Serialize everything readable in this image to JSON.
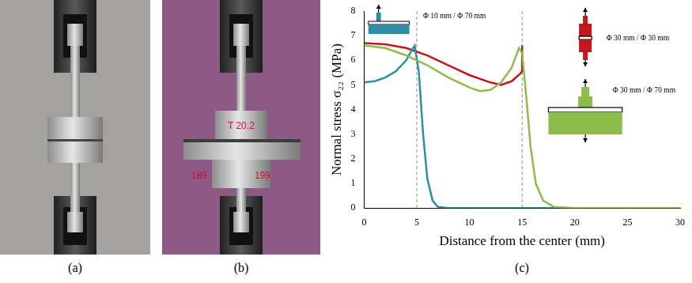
{
  "panels": {
    "a": {
      "label": "(a)"
    },
    "b": {
      "label": "(b)",
      "markings": [
        "T 20.2",
        "189",
        "199"
      ]
    },
    "c": {
      "label": "(c)"
    }
  },
  "chart_data": {
    "type": "line",
    "x_label": "Distance from the center (mm)",
    "y_label": "Normal stress σ₂₂ (MPa)",
    "xlim": [
      0,
      30
    ],
    "xticks": [
      0,
      5,
      10,
      15,
      20,
      25,
      30
    ],
    "ylim": [
      0,
      8
    ],
    "yticks": [
      0,
      1,
      2,
      3,
      4,
      5,
      6,
      7,
      8
    ],
    "grid": false,
    "vlines": [
      5,
      15
    ],
    "series": [
      {
        "name": "Φ 30 mm / Φ 70 mm",
        "color": "#8dbb4c",
        "x": [
          0,
          2,
          4,
          6,
          8,
          10,
          11,
          12,
          13,
          14,
          14.7,
          15,
          15.4,
          15.8,
          16.3,
          17,
          18,
          20,
          30
        ],
        "values": [
          6.6,
          6.5,
          6.2,
          5.8,
          5.3,
          4.9,
          4.75,
          4.8,
          5.1,
          5.7,
          6.5,
          6.3,
          4.5,
          2.5,
          1.0,
          0.3,
          0.05,
          0,
          0
        ]
      },
      {
        "name": "Φ 10 mm / Φ 70 mm",
        "color": "#2e8ea3",
        "x": [
          0,
          1,
          2,
          3,
          4,
          4.5,
          4.8,
          5.2,
          5.6,
          6,
          6.5,
          7,
          8,
          30
        ],
        "values": [
          5.1,
          5.15,
          5.3,
          5.55,
          6.0,
          6.4,
          6.6,
          5.5,
          3.0,
          1.2,
          0.3,
          0.05,
          0,
          0
        ]
      },
      {
        "name": "Φ 30 mm / Φ 30 mm",
        "color": "#c0181d",
        "x": [
          0,
          2,
          4,
          6,
          8,
          10,
          12,
          13,
          14,
          14.8,
          15,
          15
        ],
        "values": [
          6.7,
          6.65,
          6.5,
          6.2,
          5.8,
          5.4,
          5.1,
          5.0,
          5.15,
          5.45,
          5.55,
          6.6
        ]
      }
    ]
  }
}
